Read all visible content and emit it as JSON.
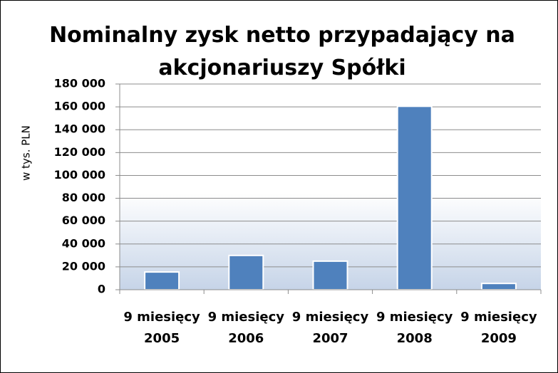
{
  "chart_data": {
    "type": "bar",
    "title": "Nominalny zysk netto przypadający na akcjonariuszy Spółki",
    "y_label": "w tys. PLN",
    "categories": [
      "9 miesięcy 2005",
      "9 miesięcy 2006",
      "9 miesięcy 2007",
      "9 miesięcy 2008",
      "9 miesięcy 2009"
    ],
    "values": [
      15500,
      30000,
      25000,
      160500,
      5500
    ],
    "color": "#4f81bd",
    "ylim": [
      0,
      180000
    ],
    "yticks": [
      0,
      {
        "value": 20000,
        "label": "20 000"
      },
      {
        "value": 40000,
        "label": "40 000"
      },
      {
        "value": 60000,
        "label": "60 000"
      },
      {
        "value": 80000,
        "label": "80 000"
      },
      {
        "value": 100000,
        "label": "100 000"
      },
      {
        "value": 120000,
        "label": "120 000"
      },
      {
        "value": 140000,
        "label": "140 000"
      },
      {
        "value": 160000,
        "label": "160 000"
      },
      {
        "value": 180000,
        "label": "180 000"
      }
    ],
    "grid": true
  }
}
